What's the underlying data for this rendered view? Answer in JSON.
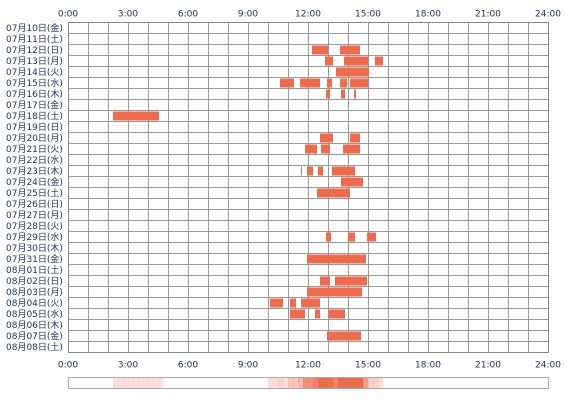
{
  "chart_data": {
    "type": "timeline",
    "color": "#f06a4c",
    "grid": true,
    "xlim": [
      0,
      24
    ],
    "xticks": [
      {
        "value": 0,
        "label": "0:00"
      },
      {
        "value": 3,
        "label": "3:00"
      },
      {
        "value": 6,
        "label": "6:00"
      },
      {
        "value": 9,
        "label": "9:00"
      },
      {
        "value": 12,
        "label": "12:00"
      },
      {
        "value": 15,
        "label": "15:00"
      },
      {
        "value": 18,
        "label": "18:00"
      },
      {
        "value": 21,
        "label": "21:00"
      },
      {
        "value": 24,
        "label": "24:00"
      }
    ],
    "categories": [
      "07月10日(金)",
      "07月11日(土)",
      "07月12日(日)",
      "07月13日(月)",
      "07月14日(火)",
      "07月15日(水)",
      "07月16日(木)",
      "07月17日(金)",
      "07月18日(土)",
      "07月19日(日)",
      "07月20日(月)",
      "07月21日(火)",
      "07月22日(水)",
      "07月23日(木)",
      "07月24日(金)",
      "07月25日(土)",
      "07月26日(日)",
      "07月27日(月)",
      "07月28日(火)",
      "07月29日(水)",
      "07月30日(木)",
      "07月31日(金)",
      "08月01日(土)",
      "08月02日(日)",
      "08月03日(月)",
      "08月04日(火)",
      "08月05日(水)",
      "08月06日(木)",
      "08月07日(金)",
      "08月08日(土)"
    ],
    "intervals": [
      [],
      [],
      [
        [
          12.2,
          13.0
        ],
        [
          13.6,
          14.6
        ]
      ],
      [
        [
          12.85,
          13.25
        ],
        [
          13.8,
          15.0
        ],
        [
          15.35,
          15.75
        ]
      ],
      [
        [
          13.4,
          15.05
        ]
      ],
      [
        [
          10.6,
          11.3
        ],
        [
          11.6,
          12.6
        ],
        [
          12.95,
          13.2
        ],
        [
          13.6,
          13.95
        ],
        [
          14.1,
          15.0
        ]
      ],
      [
        [
          12.9,
          13.1
        ],
        [
          13.65,
          13.85
        ],
        [
          14.3,
          14.4
        ]
      ],
      [],
      [
        [
          2.25,
          4.55
        ]
      ],
      [],
      [
        [
          12.6,
          13.25
        ],
        [
          14.1,
          14.6
        ]
      ],
      [
        [
          11.85,
          12.45
        ],
        [
          12.65,
          13.1
        ],
        [
          13.75,
          14.6
        ]
      ],
      [],
      [
        [
          11.65,
          11.7
        ],
        [
          11.95,
          12.25
        ],
        [
          12.5,
          12.75
        ],
        [
          13.2,
          14.35
        ]
      ],
      [
        [
          13.65,
          14.75
        ]
      ],
      [
        [
          12.45,
          14.1
        ]
      ],
      [],
      [],
      [],
      [
        [
          12.9,
          13.15
        ],
        [
          14.0,
          14.35
        ],
        [
          14.95,
          15.4
        ]
      ],
      [],
      [
        [
          11.95,
          14.9
        ]
      ],
      [],
      [
        [
          12.6,
          13.1
        ],
        [
          13.35,
          14.95
        ]
      ],
      [
        [
          11.95,
          14.7
        ]
      ],
      [
        [
          10.1,
          10.75
        ],
        [
          11.1,
          11.4
        ],
        [
          11.65,
          12.6
        ]
      ],
      [
        [
          11.1,
          11.85
        ],
        [
          12.35,
          12.6
        ],
        [
          13.05,
          13.85
        ]
      ],
      [],
      [
        [
          12.95,
          14.65
        ]
      ],
      []
    ]
  }
}
